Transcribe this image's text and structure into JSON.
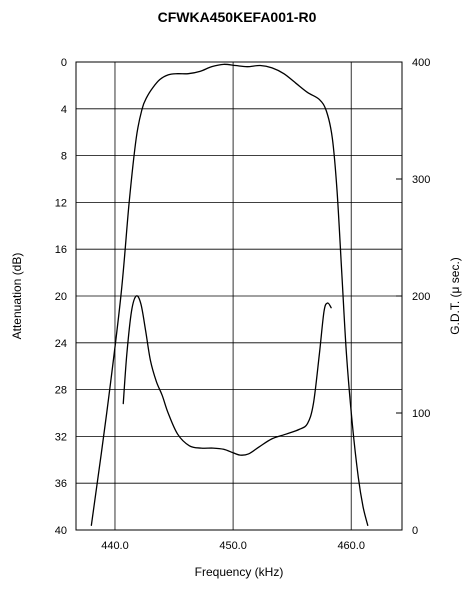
{
  "chart_data": {
    "type": "line",
    "title": "CFWKA450KEFA001-R0",
    "xlabel": "Frequency (kHz)",
    "ylabel": "Attenuation (dB)",
    "y2label": "G.D.T. (μ sec.)",
    "xlim": [
      436.7,
      464.3
    ],
    "ylim": [
      0,
      40
    ],
    "y2lim": [
      0,
      400
    ],
    "y_inverted": true,
    "grid": true,
    "x_ticks": [
      "440.0",
      "450.0",
      "460.0"
    ],
    "y_ticks": [
      "0",
      "4",
      "8",
      "12",
      "16",
      "20",
      "24",
      "28",
      "32",
      "36",
      "40"
    ],
    "y2_ticks": [
      "400",
      "300",
      "200",
      "100",
      "0"
    ],
    "colors": {
      "line": "#000000",
      "grid": "#000000",
      "background": "#ffffff"
    },
    "series": [
      {
        "axis": "left",
        "x": [
          438.0,
          439.3,
          440.5,
          441.2,
          441.8,
          442.3,
          442.7,
          443.2,
          443.8,
          444.5,
          445.3,
          446.2,
          447.2,
          448.2,
          449.2,
          450.2,
          451.2,
          452.3,
          453.3,
          454.3,
          455.3,
          456.3,
          457.3,
          457.9,
          458.4,
          458.8,
          459.2,
          459.6,
          460.1,
          460.6,
          461.0,
          461.4
        ],
        "y": [
          39.6,
          30.0,
          20.0,
          12.0,
          6.5,
          4.0,
          3.0,
          2.2,
          1.5,
          1.1,
          1.0,
          1.0,
          0.8,
          0.4,
          0.2,
          0.3,
          0.4,
          0.3,
          0.5,
          1.0,
          1.8,
          2.6,
          3.2,
          4.2,
          6.5,
          11.0,
          18.0,
          25.0,
          31.0,
          35.5,
          38.0,
          39.6
        ]
      },
      {
        "axis": "right",
        "x": [
          440.7,
          441.0,
          441.4,
          441.8,
          442.2,
          442.6,
          443.0,
          443.5,
          444.0,
          444.5,
          445.3,
          446.3,
          447.3,
          448.3,
          449.2,
          450.0,
          450.6,
          451.3,
          452.2,
          453.3,
          454.5,
          455.6,
          456.3,
          456.8,
          457.3,
          457.7,
          458.0,
          458.3
        ],
        "y": [
          108,
          150,
          187,
          200,
          193,
          170,
          145,
          127,
          115,
          100,
          82,
          72,
          70,
          70,
          69,
          66,
          64,
          65,
          71,
          78,
          82,
          86,
          91,
          108,
          150,
          187,
          194,
          190
        ]
      }
    ]
  }
}
